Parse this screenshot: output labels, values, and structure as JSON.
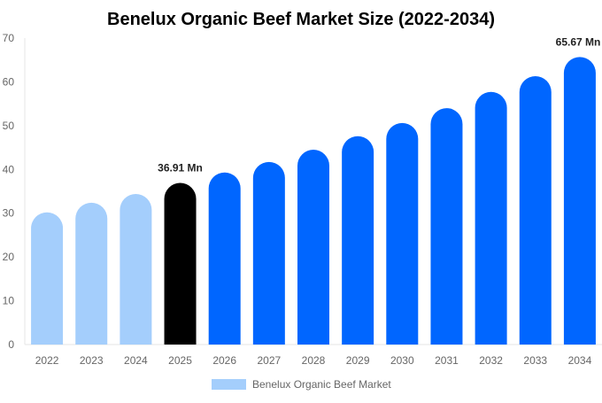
{
  "chart_data": {
    "type": "bar",
    "title": "Benelux Organic Beef Market Size (2022-2034)",
    "xlabel": "",
    "ylabel": "",
    "ylim": [
      0,
      70
    ],
    "yticks": [
      0,
      10,
      20,
      30,
      40,
      50,
      60,
      70
    ],
    "grid": false,
    "legend_placement": "bottom",
    "categories": [
      "2022",
      "2023",
      "2024",
      "2025",
      "2026",
      "2027",
      "2028",
      "2029",
      "2030",
      "2031",
      "2032",
      "2033",
      "2034"
    ],
    "series": [
      {
        "name": "Benelux Organic Beef Market",
        "values": [
          30.2,
          32.4,
          34.4,
          36.91,
          39.3,
          41.7,
          44.5,
          47.6,
          50.6,
          54.0,
          57.7,
          61.3,
          65.67
        ]
      }
    ],
    "bar_colors": [
      "#a4cefc",
      "#a4cefc",
      "#a4cefc",
      "#000000",
      "#0066ff",
      "#0066ff",
      "#0066ff",
      "#0066ff",
      "#0066ff",
      "#0066ff",
      "#0066ff",
      "#0066ff",
      "#0066ff"
    ],
    "annotations": [
      {
        "category": "2025",
        "text": "36.91 Mn"
      },
      {
        "category": "2034",
        "text": "65.67 Mn"
      }
    ],
    "legend_color": "#a4cefc"
  }
}
